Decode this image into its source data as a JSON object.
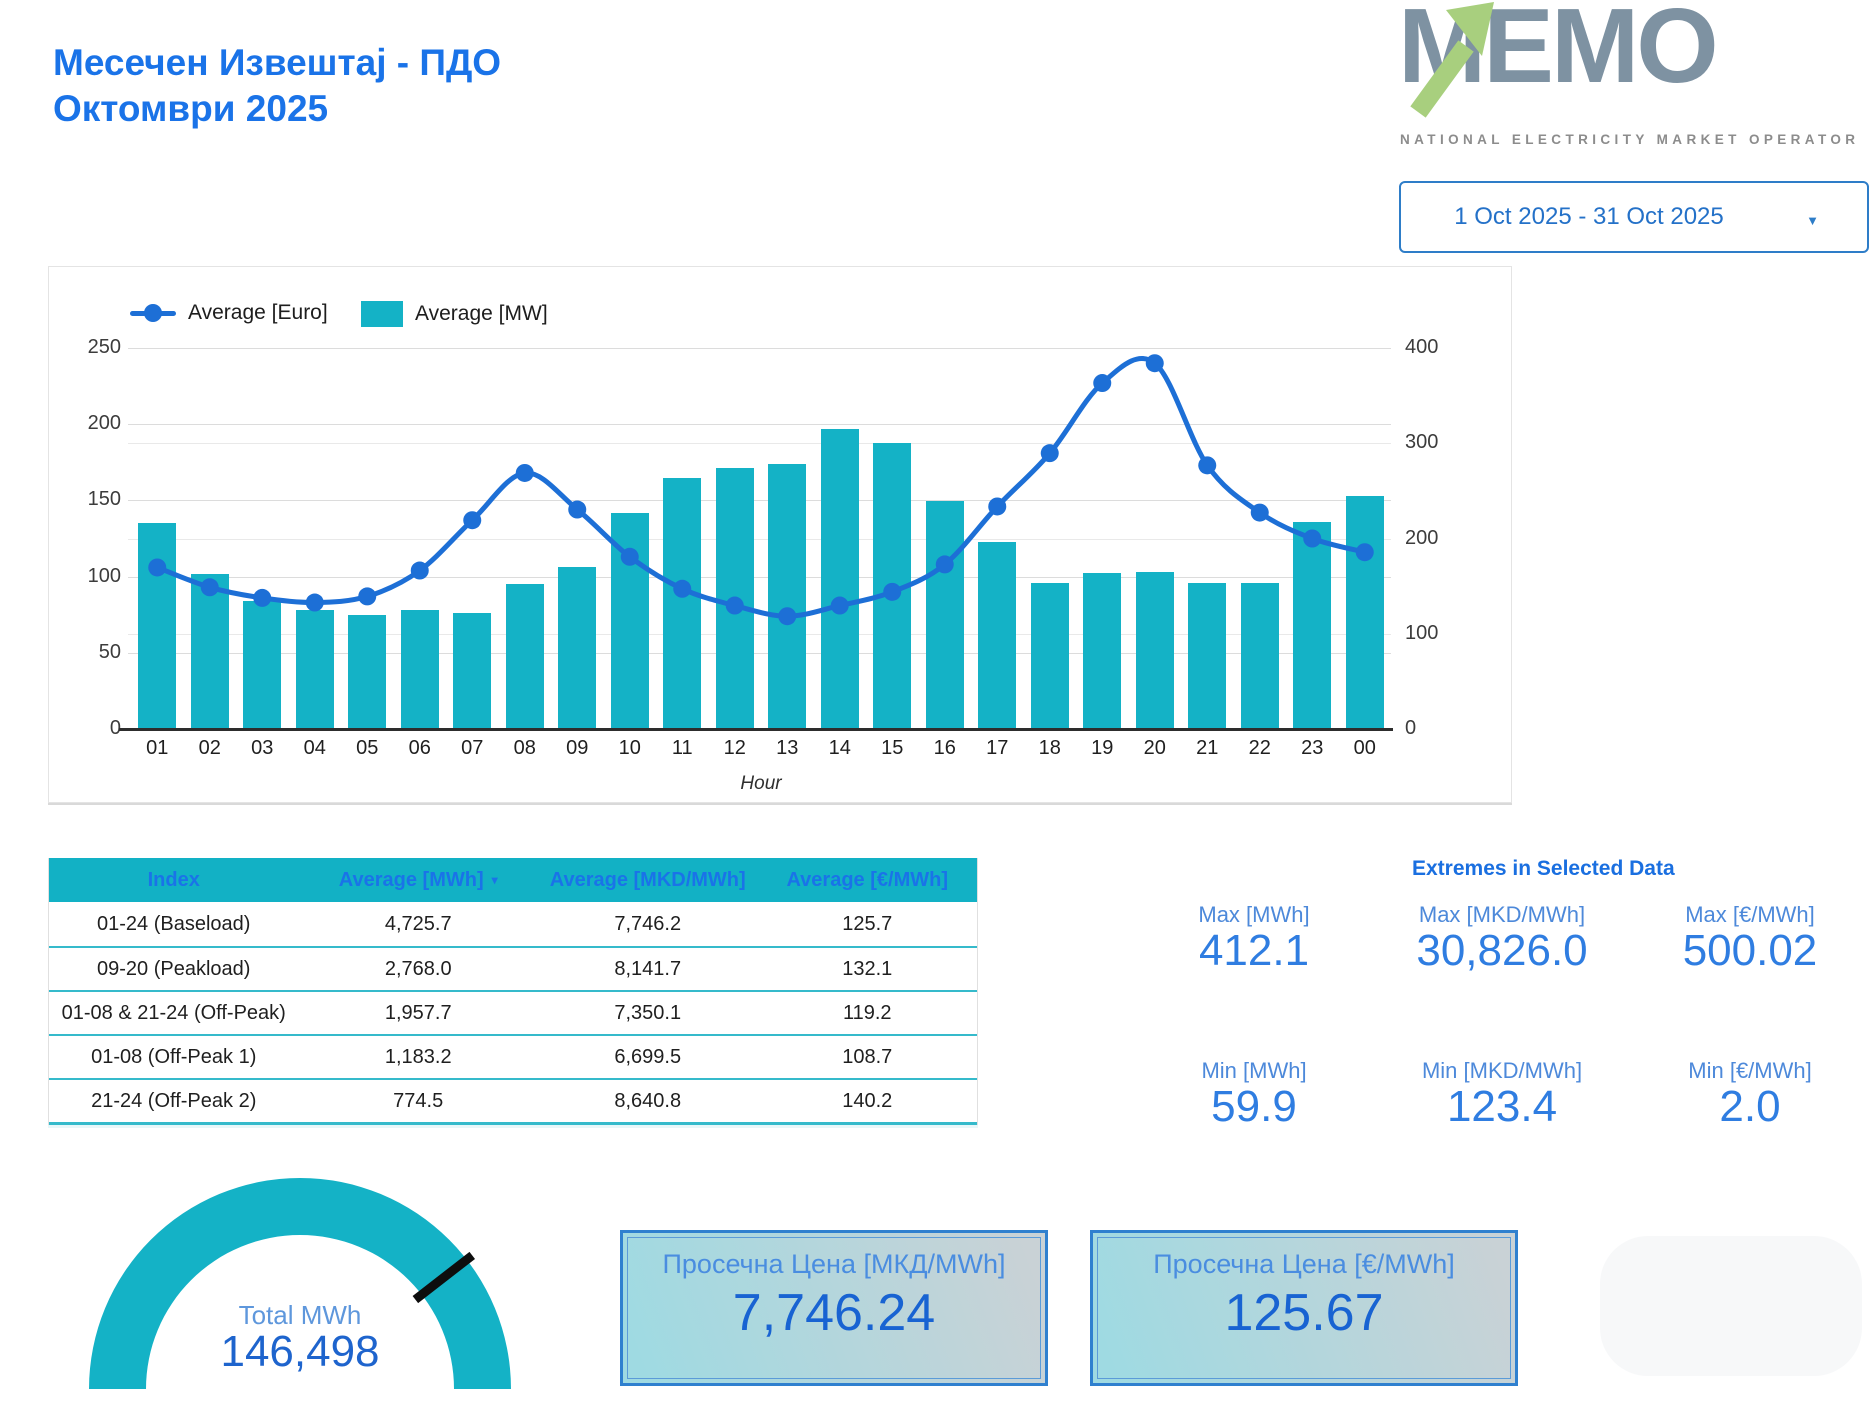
{
  "page": {
    "title_line1": "Месечен Извештај - ПДО",
    "title_line2": "Октомври 2025"
  },
  "logo": {
    "text": "MEMO",
    "tagline": "NATIONAL ELECTRICITY MARKET OPERATOR"
  },
  "date_range": {
    "value": "1 Oct 2025 - 31 Oct 2025"
  },
  "chart_data": {
    "type": "bar+line",
    "categories": [
      "01",
      "02",
      "03",
      "04",
      "05",
      "06",
      "07",
      "08",
      "09",
      "10",
      "11",
      "12",
      "13",
      "14",
      "15",
      "16",
      "17",
      "18",
      "19",
      "20",
      "21",
      "22",
      "23",
      "00"
    ],
    "series": [
      {
        "name": "Average [Euro]",
        "type": "line",
        "axis": "left",
        "values": [
          106,
          93,
          86,
          83,
          87,
          104,
          137,
          168,
          144,
          113,
          92,
          81,
          74,
          81,
          90,
          108,
          146,
          181,
          227,
          240,
          173,
          142,
          125,
          116
        ]
      },
      {
        "name": "Average [MW]",
        "type": "bar",
        "axis": "right",
        "values": [
          216,
          163,
          134,
          125,
          120,
          125,
          122,
          152,
          170,
          227,
          264,
          274,
          278,
          315,
          300,
          239,
          196,
          153,
          164,
          165,
          153,
          153,
          217,
          245
        ]
      }
    ],
    "xlabel": "Hour",
    "left_axis": {
      "min": 0,
      "max": 250,
      "ticks": [
        0,
        50,
        100,
        150,
        200,
        250
      ]
    },
    "right_axis": {
      "min": 0,
      "max": 400,
      "ticks": [
        0,
        100,
        200,
        300,
        400
      ]
    },
    "grid": true,
    "legend_position": "top-left"
  },
  "table": {
    "columns": [
      "Index",
      "Average [MWh]",
      "Average [MKD/MWh]",
      "Average [€/MWh]"
    ],
    "sort_column_index": 1,
    "sort_caret": "▾",
    "rows": [
      [
        "01-24 (Baseload)",
        "4,725.7",
        "7,746.2",
        "125.7"
      ],
      [
        "09-20 (Peakload)",
        "2,768.0",
        "8,141.7",
        "132.1"
      ],
      [
        "01-08 & 21-24 (Off-Peak)",
        "1,957.7",
        "7,350.1",
        "119.2"
      ],
      [
        "01-08 (Off-Peak 1)",
        "1,183.2",
        "6,699.5",
        "108.7"
      ],
      [
        "21-24 (Off-Peak 2)",
        "774.5",
        "8,640.8",
        "140.2"
      ]
    ]
  },
  "extremes": {
    "title": "Extremes in Selected Data",
    "max": [
      {
        "label": "Max [MWh]",
        "value": "412.1"
      },
      {
        "label": "Max [MKD/MWh]",
        "value": "30,826.0"
      },
      {
        "label": "Max [€/MWh]",
        "value": "500.02"
      }
    ],
    "min": [
      {
        "label": "Min [MWh]",
        "value": "59.9"
      },
      {
        "label": "Min [MKD/MWh]",
        "value": "123.4"
      },
      {
        "label": "Min [€/MWh]",
        "value": "2.0"
      }
    ]
  },
  "gauge": {
    "label": "Total MWh",
    "value": "146,498",
    "tick_fraction": 0.79
  },
  "cards": [
    {
      "label": "Просечна Цена [МКД/MWh]",
      "value": "7,746.24"
    },
    {
      "label": "Просечна Цена [€/MWh]",
      "value": "125.67"
    }
  ],
  "colors": {
    "accent_blue": "#1a73e8",
    "line_blue": "#1d6fd6",
    "cyan": "#14b2c6",
    "logo_gray": "#7e92a2",
    "logo_green": "#a8cf7e",
    "value_blue": "#2f7de1"
  },
  "dropdown_caret": "▼"
}
